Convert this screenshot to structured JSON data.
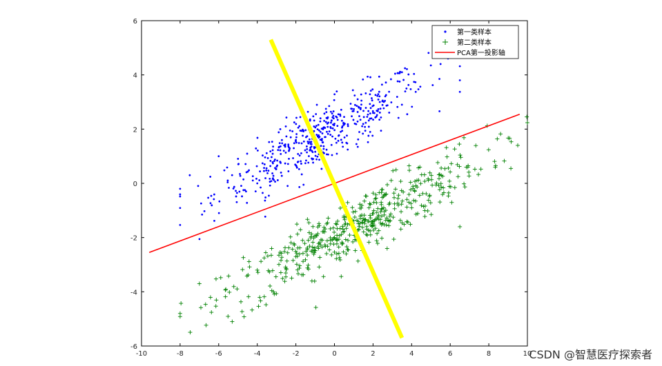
{
  "chart_data": {
    "type": "scatter",
    "title": "",
    "xlabel": "",
    "ylabel": "",
    "xlim": [
      -10,
      10
    ],
    "ylim": [
      -6,
      6
    ],
    "x_ticks": [
      -10,
      -8,
      -6,
      -4,
      -2,
      0,
      2,
      4,
      6,
      8,
      10
    ],
    "y_ticks": [
      -6,
      -4,
      -2,
      0,
      2,
      4,
      6
    ],
    "grid": false,
    "legend_position": "top-right",
    "series": [
      {
        "name": "第一类样本",
        "marker": "dot",
        "color": "#0000ff",
        "count": 500,
        "trend": {
          "slope": 0.38,
          "intercept": 2.0,
          "spread": 0.55,
          "x_range": [
            -8,
            6.5
          ]
        },
        "points": [
          [
            -8.0,
            -0.2
          ],
          [
            -7.5,
            0.3
          ],
          [
            -6.0,
            1.0
          ],
          [
            -4.0,
            0.0
          ],
          [
            -2.0,
            1.6
          ],
          [
            0.0,
            2.2
          ],
          [
            2.0,
            2.6
          ],
          [
            3.5,
            4.1
          ],
          [
            5.5,
            4.4
          ],
          [
            6.5,
            3.8
          ]
        ]
      },
      {
        "name": "第二类样本",
        "marker": "plus",
        "color": "#008000",
        "count": 500,
        "trend": {
          "slope": 0.38,
          "intercept": -2.0,
          "spread": 0.55,
          "x_range": [
            -8,
            10
          ]
        },
        "points": [
          [
            -8.0,
            -4.8
          ],
          [
            -5.3,
            -5.1
          ],
          [
            -7.0,
            -3.7
          ],
          [
            -4.0,
            -3.2
          ],
          [
            -2.0,
            -2.7
          ],
          [
            0.0,
            -2.0
          ],
          [
            2.0,
            -1.4
          ],
          [
            4.0,
            -0.9
          ],
          [
            6.5,
            -1.6
          ],
          [
            9.5,
            1.4
          ]
        ]
      },
      {
        "name": "PCA第一投影轴",
        "type": "line",
        "color": "#ff0000",
        "points": [
          [
            -9.6,
            -2.55
          ],
          [
            9.6,
            2.55
          ]
        ]
      },
      {
        "type": "line",
        "color": "#ffff00",
        "points": [
          [
            -3.3,
            5.3
          ],
          [
            3.5,
            -5.7
          ]
        ]
      }
    ]
  },
  "watermark": "CSDN @智慧医疗探索者"
}
